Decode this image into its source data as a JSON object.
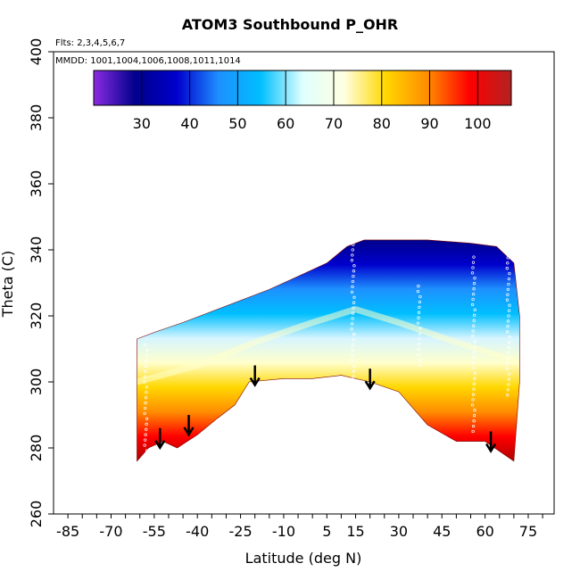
{
  "chart_data": {
    "type": "heatmap",
    "title": "ATOM3 Southbound P_OHR",
    "subtitle": "Flts: 2,3,4,5,6,7",
    "annotation": "MMDD: 1001,1004,1006,1008,1011,1014",
    "xlabel": "Latitude (deg N)",
    "ylabel": "Theta (C)",
    "xlim": [
      -90,
      84
    ],
    "ylim": [
      260,
      400
    ],
    "x_tick_labels": [
      "-85",
      "-70",
      "-55",
      "-40",
      "-25",
      "-10",
      "5",
      "15",
      "30",
      "45",
      "60",
      "75"
    ],
    "x_tick_values": [
      -85,
      -70,
      -55,
      -40,
      -25,
      -10,
      5,
      15,
      30,
      45,
      60,
      75
    ],
    "x_minor_step": 5,
    "y_tick_labels": [
      "260",
      "280",
      "300",
      "320",
      "340",
      "360",
      "380",
      "400"
    ],
    "y_tick_values": [
      260,
      280,
      300,
      320,
      340,
      360,
      380,
      400
    ],
    "colorbar": {
      "min": 20,
      "max": 107,
      "tick_labels": [
        "30",
        "40",
        "50",
        "60",
        "70",
        "80",
        "90",
        "100"
      ],
      "tick_values": [
        30,
        40,
        50,
        60,
        70,
        80,
        90,
        100
      ],
      "colors": [
        "#8a2be2",
        "#00008b",
        "#0000cd",
        "#1e90ff",
        "#00bfff",
        "#e0ffff",
        "#ffffe0",
        "#ffd700",
        "#ff8c00",
        "#ff0000",
        "#b22222"
      ]
    },
    "section": {
      "top_boundary": [
        [
          -61,
          313
        ],
        [
          -55,
          315
        ],
        [
          -45,
          318
        ],
        [
          -30,
          323
        ],
        [
          -15,
          328
        ],
        [
          -5,
          332
        ],
        [
          5,
          336
        ],
        [
          12,
          341
        ],
        [
          18,
          343
        ],
        [
          40,
          343
        ],
        [
          55,
          342
        ],
        [
          64,
          341
        ],
        [
          70,
          336
        ],
        [
          72,
          320
        ],
        [
          72,
          300
        ]
      ],
      "bottom_boundary": [
        [
          -61,
          276
        ],
        [
          -57,
          280
        ],
        [
          -52,
          282
        ],
        [
          -47,
          280
        ],
        [
          -40,
          284
        ],
        [
          -33,
          289
        ],
        [
          -27,
          293
        ],
        [
          -22,
          300
        ],
        [
          -10,
          301
        ],
        [
          0,
          301
        ],
        [
          10,
          302
        ],
        [
          20,
          300
        ],
        [
          30,
          297
        ],
        [
          40,
          287
        ],
        [
          50,
          282
        ],
        [
          60,
          282
        ],
        [
          70,
          276
        ]
      ],
      "iso_70_line": [
        [
          -61,
          300
        ],
        [
          -40,
          305
        ],
        [
          -20,
          312
        ],
        [
          0,
          318
        ],
        [
          15,
          322
        ],
        [
          30,
          318
        ],
        [
          50,
          312
        ],
        [
          72,
          306
        ]
      ]
    },
    "arrows": [
      {
        "lat": -53,
        "theta": 286
      },
      {
        "lat": -43,
        "theta": 290
      },
      {
        "lat": -20,
        "theta": 305
      },
      {
        "lat": 20,
        "theta": 304
      },
      {
        "lat": 62,
        "theta": 285
      }
    ],
    "sample_tracks": [
      {
        "lat": -58,
        "theta_range": [
          276,
          312
        ]
      },
      {
        "lat": 14,
        "theta_range": [
          300,
          345
        ]
      },
      {
        "lat": 37,
        "theta_range": [
          305,
          330
        ]
      },
      {
        "lat": 56,
        "theta_range": [
          285,
          338
        ]
      },
      {
        "lat": 68,
        "theta_range": [
          296,
          342
        ]
      }
    ]
  }
}
